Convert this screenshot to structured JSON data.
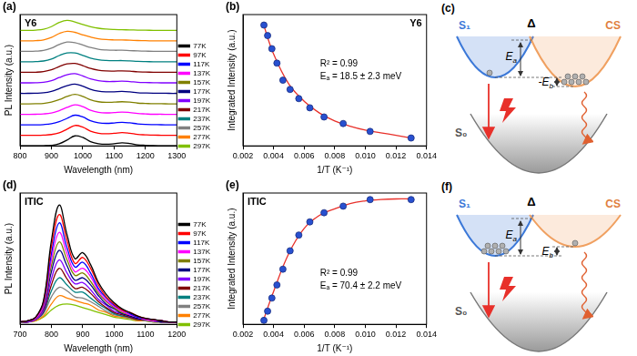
{
  "chart_data": [
    {
      "type": "line",
      "panel": "(a)",
      "title": "Y6",
      "x_label": "Wavelength (nm)",
      "y_label": "PL Intensity (a.u.)",
      "x": [
        800,
        825,
        850,
        875,
        900,
        925,
        950,
        975,
        1000,
        1025,
        1050,
        1075,
        1100,
        1125,
        1150,
        1175,
        1200,
        1225,
        1250,
        1275,
        1300
      ],
      "xlim": [
        800,
        1300
      ],
      "xticks": [
        800,
        900,
        1000,
        1100,
        1200,
        1300
      ],
      "ylim": [
        0,
        12.5
      ],
      "tick_labels": "x",
      "legend": "right",
      "grid": false,
      "series": [
        {
          "name": "77K",
          "color": "#000000",
          "values": [
            0,
            0,
            0,
            0.01,
            0.05,
            0.2,
            0.55,
            0.95,
            0.8,
            0.4,
            0.2,
            0.15,
            0.2,
            0.28,
            0.22,
            0.1,
            0.05,
            0.02,
            0.01,
            0,
            0
          ]
        },
        {
          "name": "97K",
          "color": "#ff0000",
          "values": [
            1,
            1,
            1,
            1.02,
            1.08,
            1.25,
            1.59,
            1.94,
            1.78,
            1.4,
            1.2,
            1.15,
            1.19,
            1.26,
            1.2,
            1.09,
            1.05,
            1.02,
            1.01,
            1,
            1
          ]
        },
        {
          "name": "117K",
          "color": "#0000ff",
          "values": [
            2,
            2,
            2,
            2.03,
            2.11,
            2.3,
            2.62,
            2.92,
            2.75,
            2.39,
            2.2,
            2.14,
            2.18,
            2.24,
            2.19,
            2.09,
            2.04,
            2.02,
            2.01,
            2,
            2
          ]
        },
        {
          "name": "137K",
          "color": "#ff00ff",
          "values": [
            3,
            3,
            3.01,
            3.04,
            3.13,
            3.35,
            3.66,
            3.91,
            3.73,
            3.39,
            3.2,
            3.14,
            3.17,
            3.22,
            3.17,
            3.08,
            3.04,
            3.01,
            3.01,
            3,
            3
          ]
        },
        {
          "name": "157K",
          "color": "#808000",
          "values": [
            4,
            4,
            4.01,
            4.04,
            4.16,
            4.4,
            4.7,
            4.9,
            4.71,
            4.38,
            4.2,
            4.14,
            4.16,
            4.2,
            4.16,
            4.07,
            4.04,
            4.01,
            4.01,
            4,
            4
          ]
        },
        {
          "name": "177K",
          "color": "#000080",
          "values": [
            5,
            5,
            5.01,
            5.05,
            5.19,
            5.45,
            5.73,
            5.88,
            5.69,
            5.38,
            5.2,
            5.14,
            5.15,
            5.18,
            5.14,
            5.06,
            5.03,
            5.01,
            5.01,
            5,
            5
          ]
        },
        {
          "name": "197K",
          "color": "#8000ff",
          "values": [
            6,
            6,
            6.01,
            6.06,
            6.21,
            6.5,
            6.77,
            6.87,
            6.66,
            6.37,
            6.2,
            6.13,
            6.13,
            6.16,
            6.12,
            6.06,
            6.03,
            6.01,
            6,
            6,
            6
          ]
        },
        {
          "name": "217K",
          "color": "#800000",
          "values": [
            7,
            7,
            7.01,
            7.07,
            7.24,
            7.55,
            7.8,
            7.85,
            7.64,
            7.37,
            7.2,
            7.13,
            7.12,
            7.14,
            7.11,
            7.05,
            7.03,
            7.01,
            7,
            7,
            7
          ]
        },
        {
          "name": "237K",
          "color": "#008080",
          "values": [
            8,
            8,
            8.02,
            8.08,
            8.27,
            8.6,
            8.84,
            8.84,
            8.62,
            8.36,
            8.2,
            8.13,
            8.11,
            8.12,
            8.09,
            8.04,
            8.02,
            8.01,
            8,
            8,
            8
          ]
        },
        {
          "name": "257K",
          "color": "#808080",
          "values": [
            9,
            9,
            9.02,
            9.08,
            9.3,
            9.65,
            9.88,
            9.83,
            9.6,
            9.36,
            9.2,
            9.13,
            9.1,
            9.1,
            9.07,
            9.04,
            9.02,
            9,
            9,
            9,
            9
          ]
        },
        {
          "name": "277K",
          "color": "#ff8000",
          "values": [
            10,
            10,
            10.02,
            10.09,
            10.32,
            10.7,
            10.91,
            10.81,
            10.57,
            10.36,
            10.2,
            10.12,
            10.09,
            10.08,
            10.06,
            10.03,
            10.01,
            10,
            10,
            10,
            10
          ]
        },
        {
          "name": "297K",
          "color": "#80c000",
          "values": [
            11,
            11,
            11.02,
            11.1,
            11.35,
            11.75,
            11.95,
            11.8,
            11.55,
            11.35,
            11.2,
            11.12,
            11.08,
            11.06,
            11.04,
            11.02,
            11.01,
            11,
            11,
            11,
            11
          ]
        }
      ]
    },
    {
      "type": "scatter",
      "panel": "(b)",
      "title": "Y6",
      "x_label": "1/T (K⁻¹)",
      "y_label": "Integrated Intensity (a.u.)",
      "xlim": [
        0.002,
        0.014
      ],
      "xticks": [
        0.002,
        0.004,
        0.006,
        0.008,
        {
          "value": 0.01,
          "label": "0.010"
        },
        0.012,
        0.014
      ],
      "ylim": [
        0,
        1
      ],
      "tick_labels": "x",
      "grid": false,
      "annotations": [
        "R² = 0.99",
        "Eₐ = 18.5 ± 2.3 meV"
      ],
      "series": [
        {
          "type": "scatter",
          "marker": "circle",
          "color": "#2850d0",
          "x": [
            0.00337,
            0.00361,
            0.00389,
            0.00422,
            0.00461,
            0.00508,
            0.00565,
            0.00637,
            0.0073,
            0.00855,
            0.01031,
            0.01299
          ],
          "values": [
            0.92,
            0.84,
            0.74,
            0.63,
            0.5,
            0.43,
            0.36,
            0.29,
            0.22,
            0.17,
            0.11,
            0.06
          ]
        },
        {
          "type": "line",
          "line_style": "solid",
          "color": "#e8302a",
          "x": [
            0.0033,
            0.004,
            0.005,
            0.006,
            0.007,
            0.008,
            0.009,
            0.01,
            0.011,
            0.012,
            0.013
          ],
          "values": [
            0.94,
            0.7,
            0.47,
            0.34,
            0.25,
            0.19,
            0.15,
            0.12,
            0.1,
            0.08,
            0.06
          ]
        }
      ]
    },
    {
      "type": "line",
      "panel": "(d)",
      "title": "ITIC",
      "x_label": "Wavelength (nm)",
      "y_label": "PL Intensity (a.u.)",
      "x": [
        700,
        725,
        750,
        775,
        800,
        825,
        850,
        875,
        900,
        925,
        950,
        975,
        1000,
        1025,
        1050,
        1075,
        1100,
        1125,
        1150,
        1175,
        1200
      ],
      "xlim": [
        700,
        1200
      ],
      "xticks": [
        700,
        800,
        900,
        1000,
        1100,
        1200
      ],
      "ylim": [
        0,
        1.1
      ],
      "tick_labels": "x",
      "legend": "right",
      "grid": false,
      "series": [
        {
          "name": "77K",
          "color": "#000000",
          "values": [
            0.02,
            0.03,
            0.06,
            0.2,
            0.7,
            1.0,
            0.75,
            0.55,
            0.6,
            0.5,
            0.35,
            0.25,
            0.18,
            0.13,
            0.1,
            0.07,
            0.05,
            0.04,
            0.03,
            0.02,
            0.02
          ]
        },
        {
          "name": "97K",
          "color": "#ff0000",
          "values": [
            0.02,
            0.03,
            0.06,
            0.19,
            0.65,
            0.92,
            0.7,
            0.51,
            0.56,
            0.47,
            0.33,
            0.23,
            0.17,
            0.12,
            0.1,
            0.07,
            0.05,
            0.04,
            0.03,
            0.02,
            0.02
          ]
        },
        {
          "name": "117K",
          "color": "#0000ff",
          "values": [
            0.02,
            0.03,
            0.06,
            0.18,
            0.59,
            0.85,
            0.64,
            0.48,
            0.52,
            0.43,
            0.3,
            0.22,
            0.16,
            0.12,
            0.09,
            0.06,
            0.05,
            0.04,
            0.03,
            0.02,
            0.02
          ]
        },
        {
          "name": "137K",
          "color": "#ff00ff",
          "values": [
            0.02,
            0.03,
            0.05,
            0.16,
            0.54,
            0.77,
            0.59,
            0.44,
            0.47,
            0.4,
            0.28,
            0.2,
            0.15,
            0.11,
            0.08,
            0.06,
            0.04,
            0.03,
            0.03,
            0.02,
            0.02
          ]
        },
        {
          "name": "157K",
          "color": "#808000",
          "values": [
            0.02,
            0.03,
            0.05,
            0.15,
            0.49,
            0.69,
            0.54,
            0.41,
            0.43,
            0.36,
            0.26,
            0.19,
            0.14,
            0.1,
            0.08,
            0.06,
            0.04,
            0.03,
            0.03,
            0.02,
            0.02
          ]
        },
        {
          "name": "177K",
          "color": "#000080",
          "values": [
            0.02,
            0.03,
            0.05,
            0.14,
            0.44,
            0.62,
            0.49,
            0.37,
            0.39,
            0.33,
            0.24,
            0.17,
            0.13,
            0.09,
            0.07,
            0.05,
            0.04,
            0.03,
            0.02,
            0.02,
            0.02
          ]
        },
        {
          "name": "197K",
          "color": "#8000ff",
          "values": [
            0.02,
            0.02,
            0.04,
            0.12,
            0.38,
            0.54,
            0.43,
            0.34,
            0.35,
            0.29,
            0.21,
            0.16,
            0.11,
            0.09,
            0.07,
            0.05,
            0.04,
            0.03,
            0.02,
            0.02,
            0.02
          ]
        },
        {
          "name": "217K",
          "color": "#800000",
          "values": [
            0.02,
            0.02,
            0.04,
            0.11,
            0.33,
            0.47,
            0.38,
            0.3,
            0.31,
            0.26,
            0.19,
            0.14,
            0.1,
            0.08,
            0.06,
            0.04,
            0.04,
            0.03,
            0.02,
            0.02,
            0.02
          ]
        },
        {
          "name": "237K",
          "color": "#008080",
          "values": [
            0.02,
            0.02,
            0.04,
            0.1,
            0.28,
            0.39,
            0.33,
            0.27,
            0.27,
            0.22,
            0.17,
            0.13,
            0.09,
            0.07,
            0.06,
            0.04,
            0.04,
            0.03,
            0.02,
            0.02,
            0.02
          ]
        },
        {
          "name": "257K",
          "color": "#808080",
          "values": [
            0.02,
            0.02,
            0.04,
            0.09,
            0.23,
            0.31,
            0.28,
            0.23,
            0.22,
            0.19,
            0.15,
            0.11,
            0.08,
            0.07,
            0.05,
            0.04,
            0.03,
            0.02,
            0.02,
            0.02,
            0.02
          ]
        },
        {
          "name": "277K",
          "color": "#ff8000",
          "values": [
            0.02,
            0.02,
            0.03,
            0.07,
            0.17,
            0.24,
            0.22,
            0.2,
            0.18,
            0.16,
            0.12,
            0.1,
            0.07,
            0.06,
            0.05,
            0.03,
            0.03,
            0.02,
            0.02,
            0.02,
            0.02
          ]
        },
        {
          "name": "297K",
          "color": "#80c000",
          "values": [
            0.02,
            0.02,
            0.03,
            0.06,
            0.12,
            0.16,
            0.17,
            0.16,
            0.14,
            0.12,
            0.1,
            0.08,
            0.06,
            0.05,
            0.04,
            0.03,
            0.03,
            0.02,
            0.02,
            0.02,
            0.02
          ]
        }
      ]
    },
    {
      "type": "scatter",
      "panel": "(e)",
      "title": "ITIC",
      "x_label": "1/T (K⁻¹)",
      "y_label": "Integrated Intensity (a.u.)",
      "xlim": [
        0.002,
        0.014
      ],
      "xticks": [
        0.002,
        0.004,
        0.006,
        0.008,
        {
          "value": 0.01,
          "label": "0.010"
        },
        0.012,
        0.014
      ],
      "ylim": [
        0,
        1
      ],
      "tick_labels": "x",
      "grid": false,
      "annotations": [
        "R² = 0.99",
        "Eₐ = 70.4 ± 2.2 meV"
      ],
      "series": [
        {
          "type": "scatter",
          "marker": "circle",
          "color": "#2850d0",
          "x": [
            0.00337,
            0.00361,
            0.00389,
            0.00422,
            0.00461,
            0.00508,
            0.00565,
            0.00637,
            0.0073,
            0.00855,
            0.01031,
            0.01299
          ],
          "values": [
            0.03,
            0.1,
            0.2,
            0.3,
            0.42,
            0.56,
            0.68,
            0.78,
            0.85,
            0.9,
            0.95,
            0.95
          ]
        },
        {
          "type": "line",
          "line_style": "solid",
          "color": "#e8302a",
          "x": [
            0.0033,
            0.004,
            0.005,
            0.006,
            0.007,
            0.008,
            0.009,
            0.01,
            0.011,
            0.012,
            0.013
          ],
          "values": [
            0.02,
            0.25,
            0.54,
            0.73,
            0.83,
            0.88,
            0.92,
            0.94,
            0.95,
            0.955,
            0.955
          ]
        }
      ]
    }
  ],
  "diagrams": [
    {
      "panel": "(c)",
      "s1": "S₁",
      "delta": "Δ",
      "cs": "CS",
      "s0": "S₀",
      "ea": {
        "main": "E",
        "sub": "a"
      },
      "eb": {
        "main": "-E",
        "sub": "b"
      }
    },
    {
      "panel": "(f)",
      "s1": "S₁",
      "delta": "Δ",
      "cs": "CS",
      "s0": "S₀",
      "ea": {
        "main": "E",
        "sub": "a"
      },
      "eb": {
        "main": "E",
        "sub": "b"
      }
    }
  ]
}
